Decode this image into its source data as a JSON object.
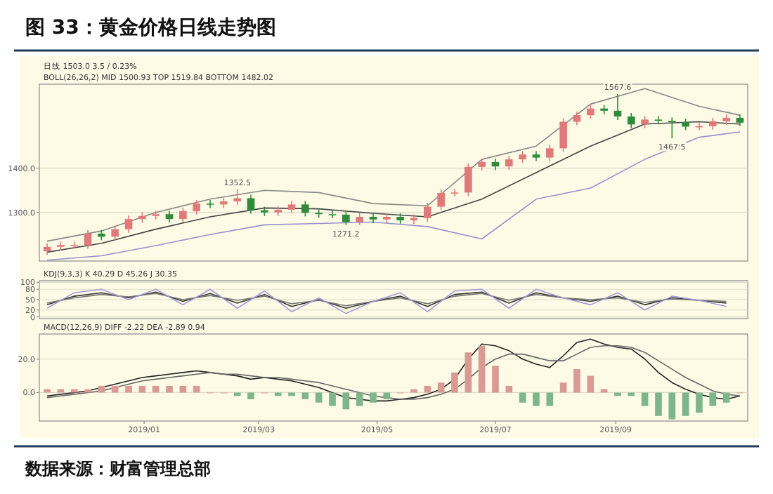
{
  "chart_data": [
    {
      "type": "candlestick",
      "title": "图 33：黄金价格日线走势图",
      "annotations": [
        "日线  1503.0  3.5 / 0.23%",
        "BOLL(26,26,2)  MID 1500.93  TOP 1519.84  BOTTOM 1482.02",
        {
          "text": "1352.5",
          "x": "2019-02-18",
          "y": 1352.5
        },
        {
          "text": "1271.2",
          "x": "2019-04-15",
          "y": 1271.2
        },
        {
          "text": "1567.6",
          "x": "2019-09-02",
          "y": 1567.6
        },
        {
          "text": "1467.5",
          "x": "2019-09-30",
          "y": 1467.5
        }
      ],
      "x": [
        "2018-11-12",
        "2018-11-19",
        "2018-11-26",
        "2018-12-03",
        "2018-12-10",
        "2018-12-17",
        "2018-12-24",
        "2018-12-31",
        "2019-01-07",
        "2019-01-14",
        "2019-01-21",
        "2019-01-28",
        "2019-02-04",
        "2019-02-11",
        "2019-02-18",
        "2019-02-25",
        "2019-03-04",
        "2019-03-11",
        "2019-03-18",
        "2019-03-25",
        "2019-04-01",
        "2019-04-08",
        "2019-04-15",
        "2019-04-22",
        "2019-04-29",
        "2019-05-06",
        "2019-05-13",
        "2019-05-20",
        "2019-05-27",
        "2019-06-03",
        "2019-06-10",
        "2019-06-17",
        "2019-06-24",
        "2019-07-01",
        "2019-07-08",
        "2019-07-15",
        "2019-07-22",
        "2019-07-29",
        "2019-08-05",
        "2019-08-12",
        "2019-08-19",
        "2019-08-26",
        "2019-09-02",
        "2019-09-09",
        "2019-09-16",
        "2019-09-23",
        "2019-09-30",
        "2019-10-07",
        "2019-10-14",
        "2019-10-21",
        "2019-10-28",
        "2019-11-04"
      ],
      "ohlc": [
        [
          1212,
          1230,
          1204,
          1222
        ],
        [
          1222,
          1234,
          1214,
          1226
        ],
        [
          1226,
          1234,
          1218,
          1226
        ],
        [
          1226,
          1260,
          1218,
          1252
        ],
        [
          1252,
          1260,
          1237,
          1245
        ],
        [
          1245,
          1270,
          1237,
          1262
        ],
        [
          1262,
          1293,
          1254,
          1285
        ],
        [
          1285,
          1300,
          1277,
          1292
        ],
        [
          1292,
          1304,
          1284,
          1296
        ],
        [
          1296,
          1304,
          1277,
          1285
        ],
        [
          1285,
          1311,
          1277,
          1303
        ],
        [
          1303,
          1328,
          1295,
          1320
        ],
        [
          1320,
          1328,
          1310,
          1318
        ],
        [
          1318,
          1333,
          1310,
          1325
        ],
        [
          1325,
          1352.5,
          1317,
          1332
        ],
        [
          1332,
          1340,
          1297,
          1305
        ],
        [
          1305,
          1313,
          1292,
          1300
        ],
        [
          1300,
          1314,
          1292,
          1306
        ],
        [
          1306,
          1326,
          1298,
          1318
        ],
        [
          1318,
          1326,
          1291,
          1299
        ],
        [
          1299,
          1307,
          1288,
          1296
        ],
        [
          1296,
          1304,
          1287,
          1295
        ],
        [
          1295,
          1303,
          1271.2,
          1278
        ],
        [
          1278,
          1298,
          1272,
          1290
        ],
        [
          1290,
          1298,
          1276,
          1284
        ],
        [
          1284,
          1298,
          1276,
          1290
        ],
        [
          1290,
          1298,
          1274,
          1282
        ],
        [
          1282,
          1295,
          1274,
          1287
        ],
        [
          1287,
          1321,
          1279,
          1313
        ],
        [
          1313,
          1352,
          1305,
          1344
        ],
        [
          1344,
          1353,
          1336,
          1345
        ],
        [
          1345,
          1411,
          1337,
          1403
        ],
        [
          1403,
          1422,
          1395,
          1414
        ],
        [
          1414,
          1422,
          1396,
          1404
        ],
        [
          1404,
          1428,
          1396,
          1420
        ],
        [
          1420,
          1439,
          1412,
          1431
        ],
        [
          1431,
          1439,
          1416,
          1424
        ],
        [
          1424,
          1453,
          1416,
          1445
        ],
        [
          1445,
          1513,
          1437,
          1505
        ],
        [
          1505,
          1528,
          1497,
          1520
        ],
        [
          1520,
          1543,
          1512,
          1535
        ],
        [
          1535,
          1543,
          1522,
          1530
        ],
        [
          1530,
          1567.6,
          1509,
          1517
        ],
        [
          1517,
          1525,
          1491,
          1499
        ],
        [
          1499,
          1518,
          1491,
          1510
        ],
        [
          1510,
          1518,
          1499,
          1507
        ],
        [
          1507,
          1515,
          1467.5,
          1504
        ],
        [
          1504,
          1512,
          1486,
          1494
        ],
        [
          1494,
          1503,
          1486,
          1495
        ],
        [
          1495,
          1514,
          1487,
          1506
        ],
        [
          1506,
          1522,
          1498,
          1514
        ],
        [
          1514,
          1522,
          1495,
          1503
        ]
      ],
      "colors": [
        "#e07a7a",
        "#e07a7a",
        "#e07a7a",
        "#e07a7a",
        "#2e8b3a",
        "#e07a7a",
        "#e07a7a",
        "#e07a7a",
        "#e07a7a",
        "#2e8b3a",
        "#e07a7a",
        "#e07a7a",
        "#2e8b3a",
        "#e07a7a",
        "#e07a7a",
        "#2e8b3a",
        "#2e8b3a",
        "#e07a7a",
        "#e07a7a",
        "#2e8b3a",
        "#2e8b3a",
        "#2e8b3a",
        "#2e8b3a",
        "#e07a7a",
        "#2e8b3a",
        "#e07a7a",
        "#2e8b3a",
        "#e07a7a",
        "#e07a7a",
        "#e07a7a",
        "#e07a7a",
        "#e07a7a",
        "#e07a7a",
        "#2e8b3a",
        "#e07a7a",
        "#e07a7a",
        "#2e8b3a",
        "#e07a7a",
        "#e07a7a",
        "#e07a7a",
        "#e07a7a",
        "#2e8b3a",
        "#2e8b3a",
        "#2e8b3a",
        "#e07a7a",
        "#2e8b3a",
        "#2e8b3a",
        "#2e8b3a",
        "#e07a7a",
        "#e07a7a",
        "#e07a7a",
        "#2e8b3a"
      ],
      "series": [
        {
          "type": "line",
          "color": "#444444",
          "x": [
            "2018-11-12",
            "2018-12-10",
            "2019-01-07",
            "2019-02-04",
            "2019-03-04",
            "2019-04-01",
            "2019-04-29",
            "2019-05-27",
            "2019-06-24",
            "2019-07-22",
            "2019-08-19",
            "2019-09-16",
            "2019-10-14",
            "2019-11-04"
          ],
          "values": [
            1210,
            1230,
            1262,
            1290,
            1310,
            1308,
            1298,
            1290,
            1330,
            1390,
            1450,
            1500,
            1505,
            1500
          ]
        },
        {
          "type": "line",
          "color": "#888888",
          "x": [
            "2018-11-12",
            "2018-12-10",
            "2019-01-07",
            "2019-02-04",
            "2019-03-04",
            "2019-04-01",
            "2019-04-29",
            "2019-05-27",
            "2019-06-24",
            "2019-07-22",
            "2019-08-19",
            "2019-09-16",
            "2019-10-14",
            "2019-11-04"
          ],
          "values": [
            1235,
            1258,
            1300,
            1330,
            1350,
            1345,
            1320,
            1315,
            1420,
            1450,
            1545,
            1580,
            1540,
            1520
          ]
        },
        {
          "type": "line",
          "color": "#9a8fd0",
          "x": [
            "2018-11-12",
            "2018-12-10",
            "2019-01-07",
            "2019-02-04",
            "2019-03-04",
            "2019-04-01",
            "2019-04-29",
            "2019-05-27",
            "2019-06-24",
            "2019-07-22",
            "2019-08-19",
            "2019-09-16",
            "2019-10-14",
            "2019-11-04"
          ],
          "values": [
            1192,
            1202,
            1225,
            1250,
            1272,
            1275,
            1278,
            1268,
            1240,
            1330,
            1355,
            1420,
            1470,
            1482
          ]
        }
      ],
      "xlim": [
        "2018-11-08",
        "2019-11-08"
      ],
      "ylim": [
        1190,
        1590
      ],
      "yticks": [
        {
          "value": 1300,
          "label": "1300.0"
        },
        {
          "value": 1400,
          "label": "1400.0"
        }
      ],
      "grid": "y",
      "tick_labels": "y"
    },
    {
      "type": "line",
      "annotations": [
        "KDJ(9,3,3)  K 40.29  D 45.26  J 30.35"
      ],
      "x": [
        "2018-11-12",
        "2018-11-26",
        "2018-12-10",
        "2018-12-24",
        "2019-01-07",
        "2019-01-21",
        "2019-02-04",
        "2019-02-18",
        "2019-03-04",
        "2019-03-18",
        "2019-04-01",
        "2019-04-15",
        "2019-04-29",
        "2019-05-13",
        "2019-05-27",
        "2019-06-10",
        "2019-06-24",
        "2019-07-08",
        "2019-07-22",
        "2019-08-05",
        "2019-08-19",
        "2019-09-02",
        "2019-09-16",
        "2019-09-30",
        "2019-10-14",
        "2019-10-28"
      ],
      "series": [
        {
          "type": "line",
          "color": "#333333",
          "values": [
            35,
            60,
            70,
            55,
            72,
            45,
            68,
            40,
            65,
            30,
            50,
            25,
            45,
            60,
            30,
            65,
            72,
            40,
            70,
            55,
            45,
            60,
            35,
            55,
            48,
            40
          ]
        },
        {
          "type": "line",
          "color": "#777777",
          "values": [
            40,
            55,
            65,
            58,
            68,
            50,
            62,
            48,
            60,
            38,
            48,
            32,
            45,
            55,
            38,
            60,
            68,
            48,
            65,
            55,
            50,
            55,
            42,
            52,
            48,
            45
          ]
        },
        {
          "type": "line",
          "color": "#a39ad6",
          "values": [
            25,
            70,
            80,
            50,
            80,
            35,
            80,
            25,
            75,
            15,
            55,
            10,
            45,
            70,
            15,
            75,
            80,
            25,
            80,
            55,
            35,
            70,
            20,
            60,
            48,
            30
          ]
        }
      ],
      "xlim": [
        "2018-11-08",
        "2019-11-08"
      ],
      "ylim": [
        -5,
        105
      ],
      "yticks": [
        0,
        20,
        50,
        80,
        100
      ],
      "grid": "y",
      "tick_labels": "y"
    },
    {
      "type": "bar",
      "annotations": [
        "MACD(12,26,9)  DIFF -2.22  DEA -2.89  0.94",
        "数据来源：财富管理总部"
      ],
      "x": [
        "2018-11-12",
        "2018-11-19",
        "2018-11-26",
        "2018-12-03",
        "2018-12-10",
        "2018-12-17",
        "2018-12-24",
        "2018-12-31",
        "2019-01-07",
        "2019-01-14",
        "2019-01-21",
        "2019-01-28",
        "2019-02-04",
        "2019-02-11",
        "2019-02-18",
        "2019-02-25",
        "2019-03-04",
        "2019-03-11",
        "2019-03-18",
        "2019-03-25",
        "2019-04-01",
        "2019-04-08",
        "2019-04-15",
        "2019-04-22",
        "2019-04-29",
        "2019-05-06",
        "2019-05-13",
        "2019-05-20",
        "2019-05-27",
        "2019-06-03",
        "2019-06-10",
        "2019-06-17",
        "2019-06-24",
        "2019-07-01",
        "2019-07-08",
        "2019-07-15",
        "2019-07-22",
        "2019-07-29",
        "2019-08-05",
        "2019-08-12",
        "2019-08-19",
        "2019-08-26",
        "2019-09-02",
        "2019-09-09",
        "2019-09-16",
        "2019-09-23",
        "2019-09-30",
        "2019-10-07",
        "2019-10-14",
        "2019-10-21",
        "2019-10-28",
        "2019-11-04"
      ],
      "series": [
        {
          "type": "bar",
          "values": [
            2,
            2,
            2,
            2,
            4,
            4,
            4,
            4,
            4,
            4,
            4,
            4,
            0,
            0,
            -2,
            -4,
            0,
            -2,
            -2,
            -4,
            -6,
            -8,
            -10,
            -8,
            -6,
            -4,
            0,
            2,
            4,
            6,
            12,
            24,
            28,
            16,
            4,
            -6,
            -8,
            -8,
            6,
            14,
            10,
            2,
            -2,
            -2,
            -8,
            -14,
            -16,
            -14,
            -12,
            -8,
            -6,
            0
          ],
          "colors": [
            "#d99a94",
            "#d99a94",
            "#d99a94",
            "#d99a94",
            "#d99a94",
            "#d99a94",
            "#d99a94",
            "#d99a94",
            "#d99a94",
            "#d99a94",
            "#d99a94",
            "#d99a94",
            "#d99a94",
            "#d99a94",
            "#7fb58a",
            "#7fb58a",
            "#d99a94",
            "#7fb58a",
            "#7fb58a",
            "#7fb58a",
            "#7fb58a",
            "#7fb58a",
            "#7fb58a",
            "#7fb58a",
            "#7fb58a",
            "#7fb58a",
            "#d99a94",
            "#d99a94",
            "#d99a94",
            "#d99a94",
            "#d99a94",
            "#d99a94",
            "#d99a94",
            "#d99a94",
            "#d99a94",
            "#7fb58a",
            "#7fb58a",
            "#7fb58a",
            "#d99a94",
            "#d99a94",
            "#d99a94",
            "#d99a94",
            "#7fb58a",
            "#7fb58a",
            "#7fb58a",
            "#7fb58a",
            "#7fb58a",
            "#7fb58a",
            "#7fb58a",
            "#7fb58a",
            "#7fb58a",
            "#d99a94"
          ]
        },
        {
          "type": "line",
          "color": "#222222",
          "values": [
            -2,
            -1,
            0,
            1,
            3,
            5,
            7,
            9,
            10,
            11,
            12,
            13,
            12,
            11,
            10,
            8,
            9,
            8,
            7,
            5,
            3,
            0,
            -3,
            -4,
            -5,
            -5,
            -4,
            -3,
            -1,
            2,
            8,
            20,
            29,
            28,
            25,
            20,
            17,
            15,
            22,
            30,
            32,
            29,
            27,
            26,
            20,
            12,
            6,
            2,
            -1,
            -3,
            -4,
            -2
          ]
        },
        {
          "type": "line",
          "color": "#666666",
          "values": [
            -3,
            -2,
            -1,
            0,
            1,
            3,
            5,
            7,
            8,
            9,
            10,
            11,
            12,
            11,
            11,
            10,
            9,
            9,
            8,
            7,
            6,
            4,
            2,
            0,
            -2,
            -3,
            -4,
            -4,
            -3,
            -1,
            2,
            8,
            15,
            20,
            23,
            23,
            21,
            19,
            19,
            23,
            27,
            28,
            28,
            27,
            24,
            19,
            14,
            9,
            5,
            1,
            -1,
            -2
          ]
        }
      ],
      "xlim": [
        "2018-11-08",
        "2019-11-08"
      ],
      "xticks": [
        {
          "value": "2019-01-01",
          "label": "2019/01"
        },
        {
          "value": "2019-03-01",
          "label": "2019/03"
        },
        {
          "value": "2019-05-01",
          "label": "2019/05"
        },
        {
          "value": "2019-07-01",
          "label": "2019/07"
        },
        {
          "value": "2019-09-01",
          "label": "2019/09"
        }
      ],
      "ylim": [
        -17,
        35
      ],
      "yticks": [
        {
          "value": 0,
          "label": "0.0"
        },
        {
          "value": 20,
          "label": "20.0"
        }
      ],
      "grid": "y"
    }
  ]
}
